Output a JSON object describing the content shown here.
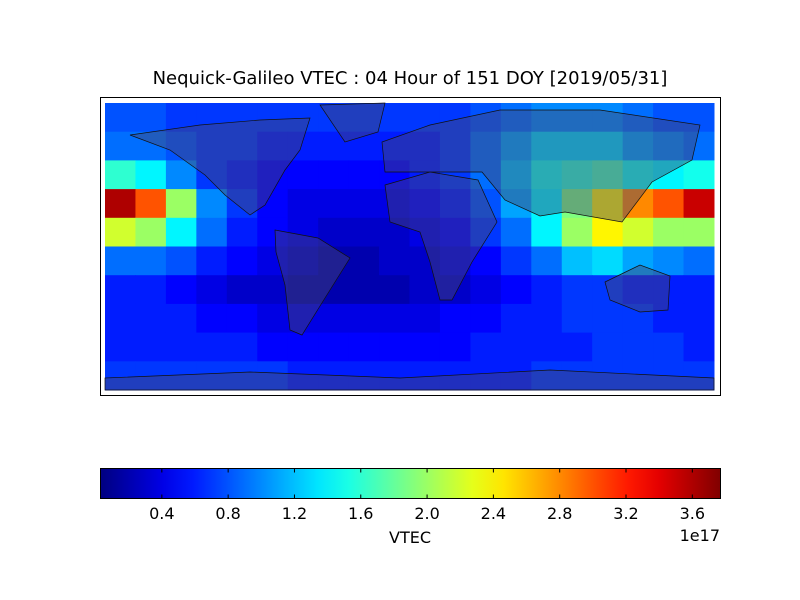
{
  "chart_data": {
    "type": "heatmap",
    "title": "Nequick-Galileo VTEC : 04 Hour of 151 DOY [2019/05/31]",
    "z": [
      [
        0.8,
        0.8,
        0.7,
        0.7,
        0.7,
        0.7,
        0.7,
        0.7,
        0.7,
        0.7,
        0.7,
        0.7,
        0.8,
        0.9,
        1.0,
        1.0,
        1.0,
        0.9,
        0.8,
        0.8
      ],
      [
        0.9,
        0.9,
        0.8,
        0.7,
        0.7,
        0.6,
        0.6,
        0.6,
        0.6,
        0.6,
        0.6,
        0.7,
        0.9,
        1.1,
        1.3,
        1.3,
        1.3,
        1.1,
        1.0,
        0.9
      ],
      [
        1.6,
        1.4,
        1.0,
        0.7,
        0.6,
        0.5,
        0.5,
        0.5,
        0.5,
        0.5,
        0.6,
        0.7,
        0.9,
        1.2,
        1.5,
        1.6,
        1.7,
        1.5,
        1.4,
        1.5
      ],
      [
        3.6,
        3.0,
        2.0,
        1.0,
        0.7,
        0.5,
        0.4,
        0.4,
        0.4,
        0.4,
        0.5,
        0.6,
        0.8,
        1.1,
        1.4,
        1.9,
        2.4,
        2.8,
        3.0,
        3.5
      ],
      [
        2.2,
        2.0,
        1.4,
        0.9,
        0.6,
        0.5,
        0.4,
        0.3,
        0.3,
        0.3,
        0.4,
        0.5,
        0.7,
        0.9,
        1.4,
        2.0,
        2.4,
        2.2,
        2.0,
        2.0
      ],
      [
        0.9,
        0.9,
        0.8,
        0.6,
        0.5,
        0.4,
        0.3,
        0.2,
        0.2,
        0.3,
        0.3,
        0.4,
        0.5,
        0.7,
        0.9,
        1.2,
        1.3,
        1.1,
        1.0,
        0.9
      ],
      [
        0.6,
        0.6,
        0.5,
        0.4,
        0.3,
        0.3,
        0.2,
        0.2,
        0.2,
        0.2,
        0.3,
        0.3,
        0.4,
        0.5,
        0.6,
        0.7,
        0.7,
        0.6,
        0.6,
        0.6
      ],
      [
        0.6,
        0.6,
        0.6,
        0.5,
        0.5,
        0.4,
        0.4,
        0.4,
        0.4,
        0.4,
        0.4,
        0.5,
        0.5,
        0.6,
        0.6,
        0.7,
        0.7,
        0.7,
        0.6,
        0.6
      ],
      [
        0.6,
        0.6,
        0.6,
        0.6,
        0.6,
        0.5,
        0.5,
        0.5,
        0.5,
        0.5,
        0.5,
        0.5,
        0.6,
        0.6,
        0.6,
        0.6,
        0.7,
        0.7,
        0.7,
        0.6
      ],
      [
        0.7,
        0.7,
        0.7,
        0.7,
        0.7,
        0.7,
        0.6,
        0.6,
        0.6,
        0.6,
        0.6,
        0.6,
        0.6,
        0.6,
        0.7,
        0.7,
        0.7,
        0.7,
        0.7,
        0.7
      ]
    ],
    "colormap": "jet",
    "clim": [
      0.03,
      3.77
    ],
    "cticks": [
      0.4,
      0.8,
      1.2,
      1.6,
      {
        "value": 2.0,
        "label": "2.0"
      },
      2.4,
      2.8,
      3.2,
      3.6
    ],
    "clabel": "VTEC",
    "coffset": "1e17"
  }
}
